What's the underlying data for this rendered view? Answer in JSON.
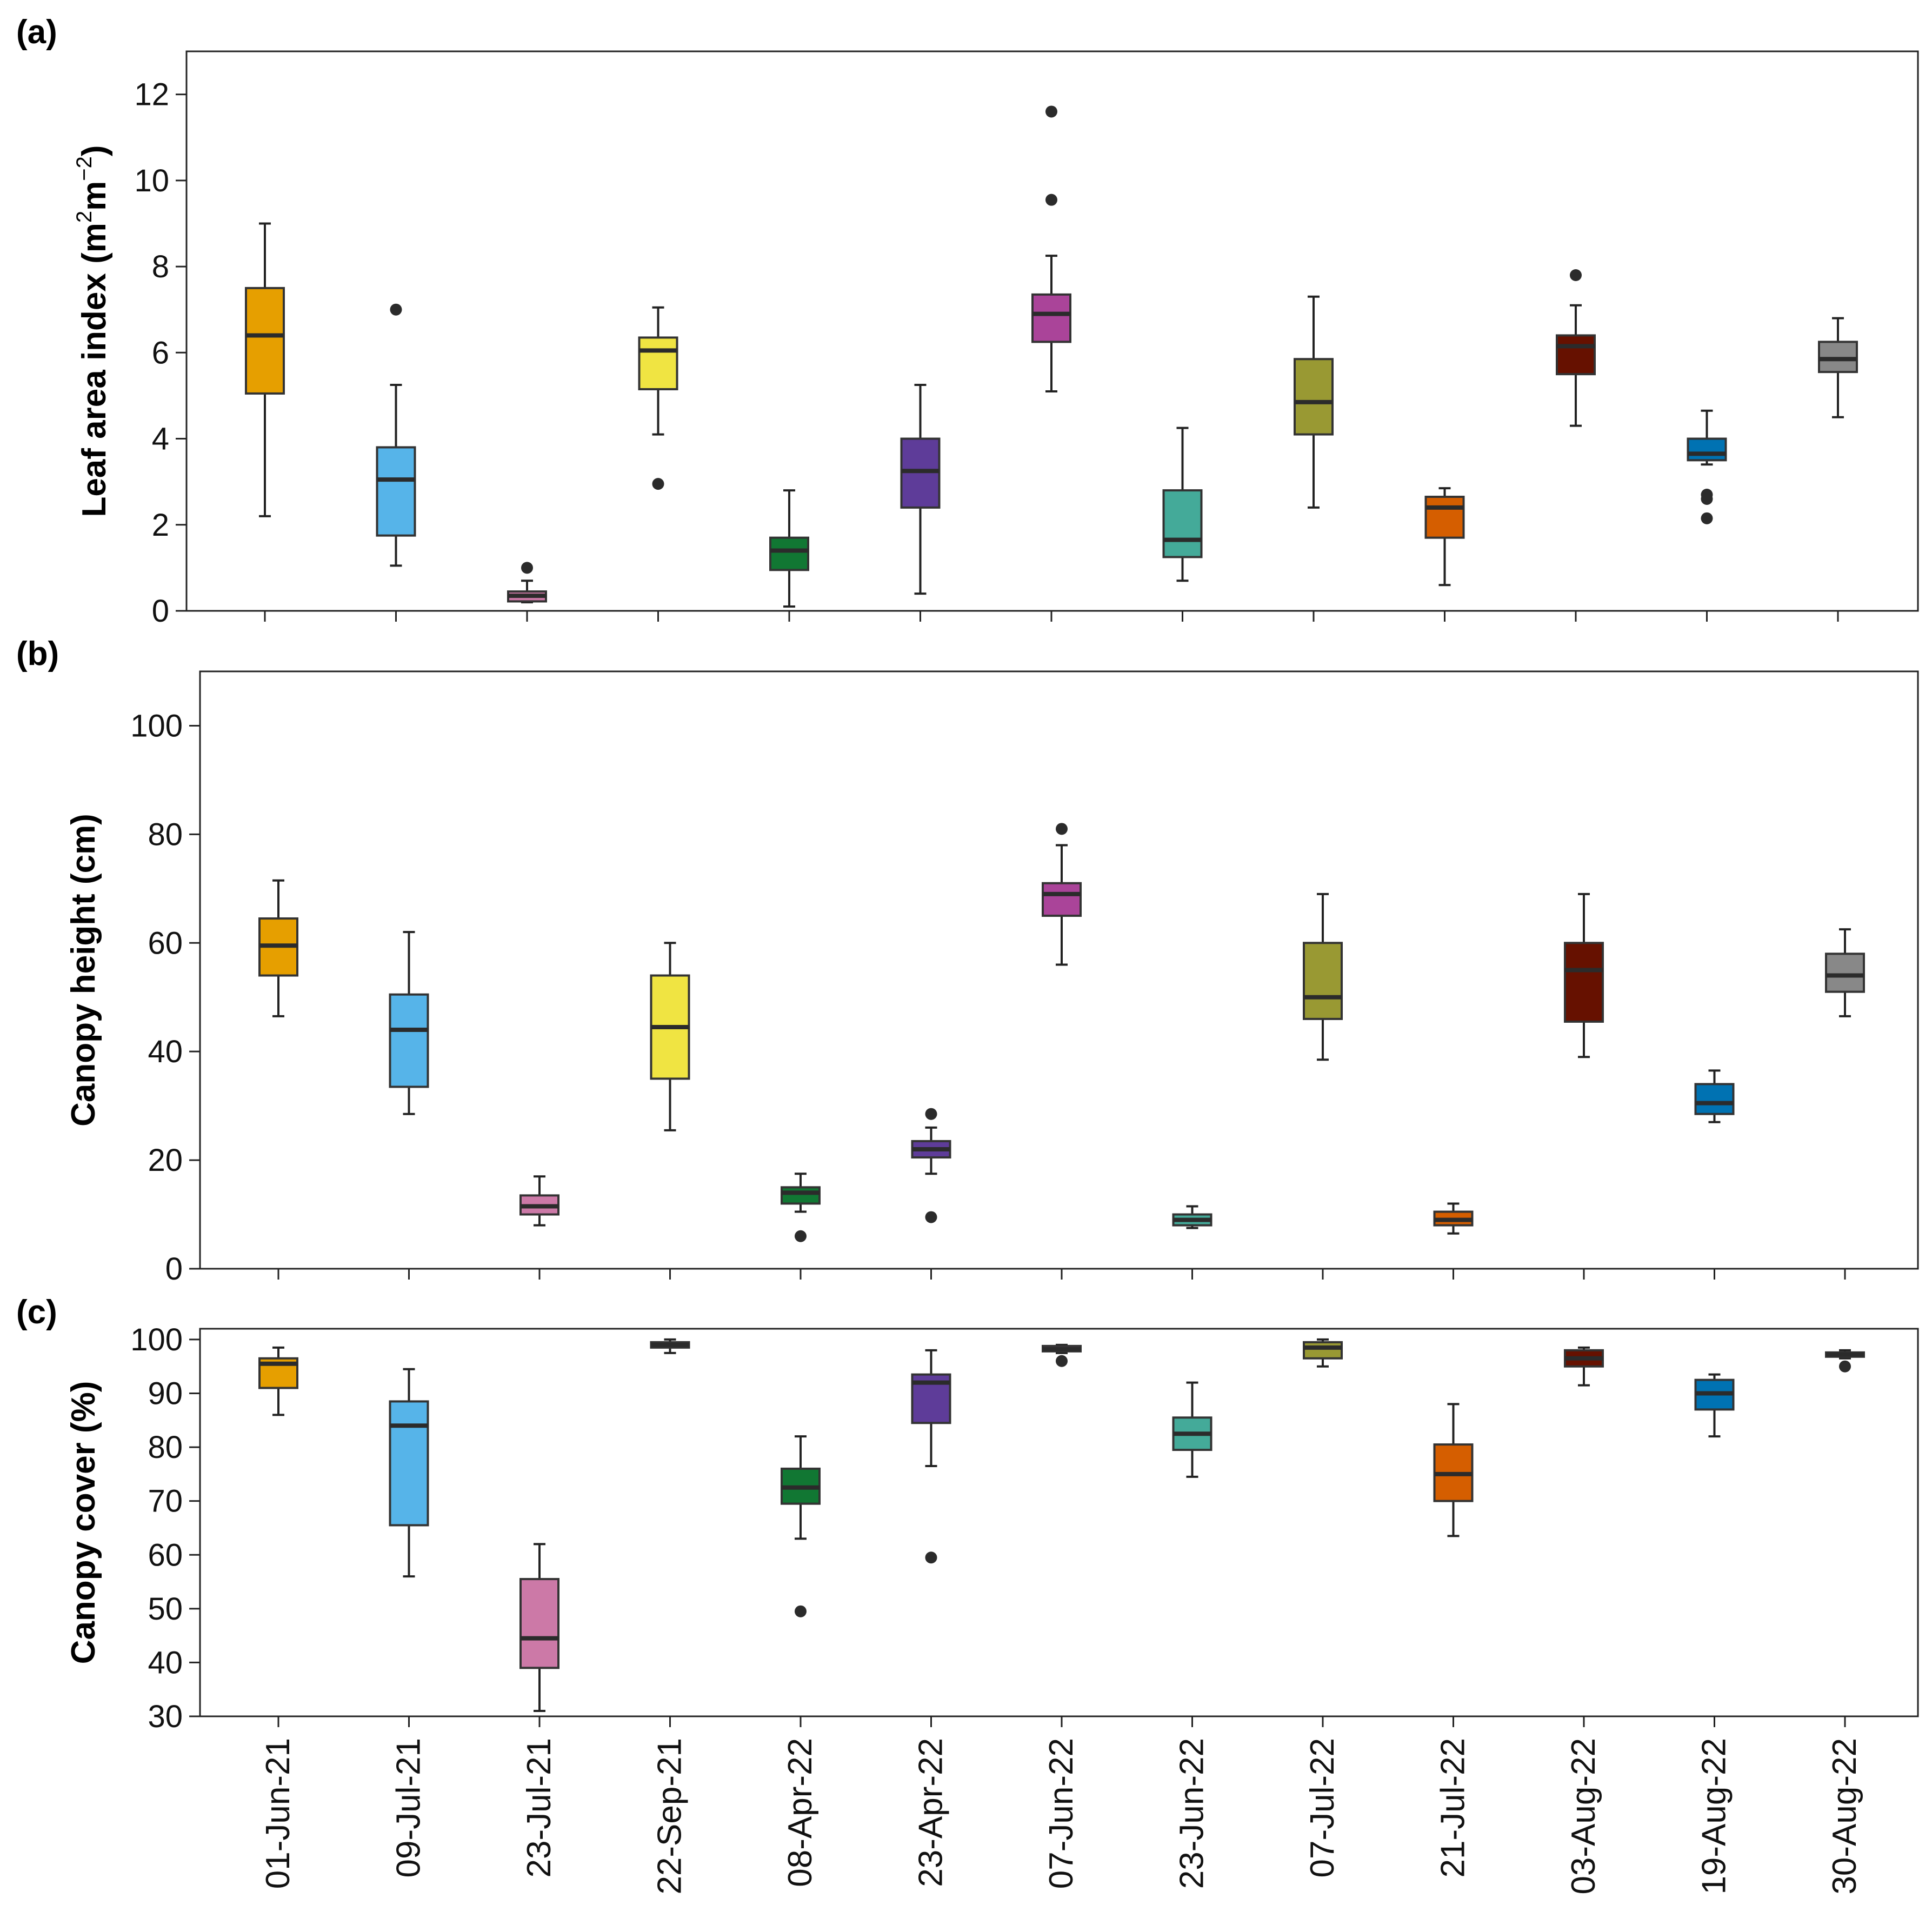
{
  "chart_data": {
    "type": "box",
    "categories": [
      "01-Jun-21",
      "09-Jul-21",
      "23-Jul-21",
      "22-Sep-21",
      "08-Apr-22",
      "23-Apr-22",
      "07-Jun-22",
      "23-Jun-22",
      "07-Jul-22",
      "21-Jul-22",
      "03-Aug-22",
      "19-Aug-22",
      "30-Aug-22"
    ],
    "colors": [
      "#E69F00",
      "#56B4E9",
      "#CC79A7",
      "#F0E442",
      "#117733",
      "#5E3C99",
      "#AA4499",
      "#44AA99",
      "#999933",
      "#D55E00",
      "#661100",
      "#0072B2",
      "#888888"
    ],
    "panels": [
      {
        "id": "a",
        "label": "(a)",
        "ylabel": "Leaf area index",
        "ylabel_unit_base": "(m",
        "ylabel_unit_sup1": "2",
        "ylabel_unit_mid": "m",
        "ylabel_unit_sup2": "−2",
        "ylabel_unit_close": ")",
        "ylim": [
          0,
          13
        ],
        "yticks": [
          0,
          2,
          4,
          6,
          8,
          10,
          12
        ],
        "boxes": [
          {
            "min": 2.2,
            "q1": 5.05,
            "median": 6.4,
            "q3": 7.5,
            "max": 9.0,
            "outliers": []
          },
          {
            "min": 1.05,
            "q1": 1.75,
            "median": 3.05,
            "q3": 3.8,
            "max": 5.25,
            "outliers": [
              7.0
            ]
          },
          {
            "min": 0.2,
            "q1": 0.22,
            "median": 0.35,
            "q3": 0.45,
            "max": 0.7,
            "outliers": [
              1.0
            ]
          },
          {
            "min": 4.1,
            "q1": 5.15,
            "median": 6.05,
            "q3": 6.35,
            "max": 7.05,
            "outliers": [
              2.95
            ]
          },
          {
            "min": 0.1,
            "q1": 0.95,
            "median": 1.4,
            "q3": 1.7,
            "max": 2.8,
            "outliers": []
          },
          {
            "min": 0.4,
            "q1": 2.4,
            "median": 3.25,
            "q3": 4.0,
            "max": 5.25,
            "outliers": []
          },
          {
            "min": 5.1,
            "q1": 6.25,
            "median": 6.9,
            "q3": 7.35,
            "max": 8.25,
            "outliers": [
              9.55,
              11.6
            ]
          },
          {
            "min": 0.7,
            "q1": 1.25,
            "median": 1.65,
            "q3": 2.8,
            "max": 4.25,
            "outliers": []
          },
          {
            "min": 2.4,
            "q1": 4.1,
            "median": 4.85,
            "q3": 5.85,
            "max": 7.3,
            "outliers": []
          },
          {
            "min": 0.6,
            "q1": 1.7,
            "median": 2.4,
            "q3": 2.65,
            "max": 2.85,
            "outliers": []
          },
          {
            "min": 4.3,
            "q1": 5.5,
            "median": 6.15,
            "q3": 6.4,
            "max": 7.1,
            "outliers": [
              7.8
            ]
          },
          {
            "min": 3.4,
            "q1": 3.5,
            "median": 3.65,
            "q3": 4.0,
            "max": 4.65,
            "outliers": [
              2.7,
              2.6,
              2.15
            ]
          },
          {
            "min": 4.5,
            "q1": 5.55,
            "median": 5.85,
            "q3": 6.25,
            "max": 6.8,
            "outliers": []
          }
        ]
      },
      {
        "id": "b",
        "label": "(b)",
        "ylabel": "Canopy height (cm)",
        "ylim": [
          0,
          110
        ],
        "yticks": [
          0,
          20,
          40,
          60,
          80,
          100
        ],
        "boxes": [
          {
            "min": 46.5,
            "q1": 54,
            "median": 59.5,
            "q3": 64.5,
            "max": 71.5,
            "outliers": []
          },
          {
            "min": 28.5,
            "q1": 33.5,
            "median": 44,
            "q3": 50.5,
            "max": 62,
            "outliers": []
          },
          {
            "min": 8,
            "q1": 10,
            "median": 11.5,
            "q3": 13.5,
            "max": 17,
            "outliers": []
          },
          {
            "min": 25.5,
            "q1": 35,
            "median": 44.5,
            "q3": 54,
            "max": 60,
            "outliers": []
          },
          {
            "min": 10.5,
            "q1": 12,
            "median": 14,
            "q3": 15,
            "max": 17.5,
            "outliers": [
              6
            ]
          },
          {
            "min": 17.5,
            "q1": 20.5,
            "median": 22,
            "q3": 23.5,
            "max": 26,
            "outliers": [
              28.5,
              9.5
            ]
          },
          {
            "min": 56,
            "q1": 65,
            "median": 69,
            "q3": 71,
            "max": 78,
            "outliers": [
              81
            ]
          },
          {
            "min": 7.5,
            "q1": 8,
            "median": 9,
            "q3": 10,
            "max": 11.5,
            "outliers": []
          },
          {
            "min": 38.5,
            "q1": 46,
            "median": 50,
            "q3": 60,
            "max": 69,
            "outliers": []
          },
          {
            "min": 6.5,
            "q1": 8,
            "median": 9,
            "q3": 10.5,
            "max": 12,
            "outliers": []
          },
          {
            "min": 39,
            "q1": 45.5,
            "median": 55,
            "q3": 60,
            "max": 69,
            "outliers": []
          },
          {
            "min": 27,
            "q1": 28.5,
            "median": 30.5,
            "q3": 34,
            "max": 36.5,
            "outliers": []
          },
          {
            "min": 46.5,
            "q1": 51,
            "median": 54,
            "q3": 58,
            "max": 62.5,
            "outliers": []
          }
        ]
      },
      {
        "id": "c",
        "label": "(c)",
        "ylabel": "Canopy cover (%)",
        "ylim": [
          30,
          102
        ],
        "yticks": [
          30,
          40,
          50,
          60,
          70,
          80,
          90,
          100
        ],
        "boxes": [
          {
            "min": 86,
            "q1": 91,
            "median": 95.5,
            "q3": 96.5,
            "max": 98.5,
            "outliers": []
          },
          {
            "min": 56,
            "q1": 65.5,
            "median": 84,
            "q3": 88.5,
            "max": 94.5,
            "outliers": []
          },
          {
            "min": 31,
            "q1": 39,
            "median": 44.5,
            "q3": 55.5,
            "max": 62,
            "outliers": []
          },
          {
            "min": 97.5,
            "q1": 98.5,
            "median": 99,
            "q3": 99.5,
            "max": 100,
            "outliers": []
          },
          {
            "min": 63,
            "q1": 69.5,
            "median": 72.5,
            "q3": 76,
            "max": 82,
            "outliers": [
              49.5
            ]
          },
          {
            "min": 76.5,
            "q1": 84.5,
            "median": 92,
            "q3": 93.5,
            "max": 98,
            "outliers": [
              59.5
            ]
          },
          {
            "min": 97.5,
            "q1": 97.8,
            "median": 98.2,
            "q3": 98.8,
            "max": 99,
            "outliers": [
              96
            ]
          },
          {
            "min": 74.5,
            "q1": 79.5,
            "median": 82.5,
            "q3": 85.5,
            "max": 92,
            "outliers": []
          },
          {
            "min": 95,
            "q1": 96.5,
            "median": 98.5,
            "q3": 99.5,
            "max": 100,
            "outliers": []
          },
          {
            "min": 63.5,
            "q1": 70,
            "median": 75,
            "q3": 80.5,
            "max": 88,
            "outliers": []
          },
          {
            "min": 91.5,
            "q1": 95,
            "median": 96.5,
            "q3": 98,
            "max": 98.5,
            "outliers": []
          },
          {
            "min": 82,
            "q1": 87,
            "median": 90,
            "q3": 92.5,
            "max": 93.5,
            "outliers": []
          },
          {
            "min": 96.5,
            "q1": 96.8,
            "median": 97.2,
            "q3": 97.6,
            "max": 98,
            "outliers": [
              95
            ]
          }
        ]
      }
    ]
  }
}
